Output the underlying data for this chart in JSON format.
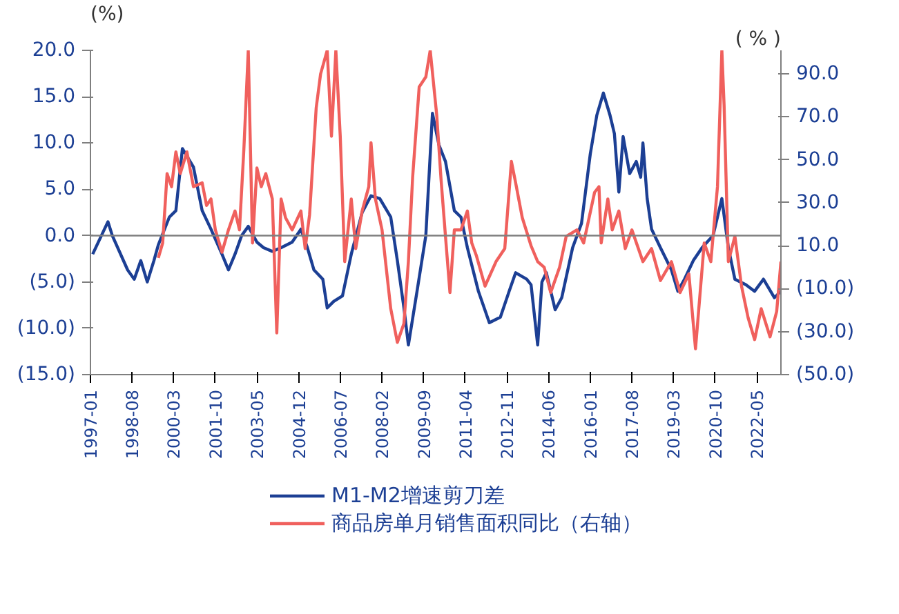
{
  "chart_data": {
    "type": "line",
    "ylabel": "(%)",
    "y2label": "( % )",
    "xlim": [
      "1997-01",
      "2023-04"
    ],
    "xticks": [
      "1997-01",
      "1998-08",
      "2000-03",
      "2001-10",
      "2003-05",
      "2004-12",
      "2006-07",
      "2008-02",
      "2009-09",
      "2011-04",
      "2012-11",
      "2014-06",
      "2016-01",
      "2017-08",
      "2019-03",
      "2020-10",
      "2022-05"
    ],
    "ylim": [
      -15,
      20
    ],
    "yticks": [
      {
        "value": 20,
        "label": "20.0"
      },
      {
        "value": 15,
        "label": "15.0"
      },
      {
        "value": 10,
        "label": "10.0"
      },
      {
        "value": 5,
        "label": "5.0"
      },
      {
        "value": 0,
        "label": "0.0"
      },
      {
        "value": -5,
        "label": "(5.0)"
      },
      {
        "value": -10,
        "label": "(10.0)"
      },
      {
        "value": -15,
        "label": "(15.0)"
      }
    ],
    "y2lim": [
      -50,
      101
    ],
    "y2ticks": [
      {
        "value": 90,
        "label": "90.0"
      },
      {
        "value": 70,
        "label": "70.0"
      },
      {
        "value": 50,
        "label": "50.0"
      },
      {
        "value": 30,
        "label": "30.0"
      },
      {
        "value": 10,
        "label": "10.0"
      },
      {
        "value": -10,
        "label": "(10.0)"
      },
      {
        "value": -30,
        "label": "(30.0)"
      },
      {
        "value": -50,
        "label": "(50.0)"
      }
    ],
    "ref_lines": [
      {
        "axis": "y",
        "value": 0,
        "color": "#7f7f7f"
      }
    ],
    "grid": false,
    "legend": "bottom",
    "marker": "none",
    "line_style": "solid",
    "series": [
      {
        "name": "M1-M2增速剪刀差",
        "color": "#1c3f94",
        "x": [
          "1997-02",
          "1997-09",
          "1997-11",
          "1998-06",
          "1998-09",
          "1998-12",
          "1999-03",
          "1999-06",
          "1999-08",
          "2000-01",
          "2000-04",
          "2000-07",
          "2000-12",
          "2001-04",
          "2001-08",
          "2002-01",
          "2002-04",
          "2002-07",
          "2002-10",
          "2003-01",
          "2003-05",
          "2003-08",
          "2003-12",
          "2004-04",
          "2004-09",
          "2005-01",
          "2005-04",
          "2005-07",
          "2005-11",
          "2006-01",
          "2006-04",
          "2006-08",
          "2006-12",
          "2007-05",
          "2007-09",
          "2008-01",
          "2008-06",
          "2008-09",
          "2008-12",
          "2009-02",
          "2009-06",
          "2009-10",
          "2010-01",
          "2010-04",
          "2010-07",
          "2010-11",
          "2011-02",
          "2011-05",
          "2011-10",
          "2012-03",
          "2012-08",
          "2012-12",
          "2013-03",
          "2013-08",
          "2013-10",
          "2014-01",
          "2014-03",
          "2014-05",
          "2014-09",
          "2014-12",
          "2015-05",
          "2015-09",
          "2016-01",
          "2016-04",
          "2016-07",
          "2016-10",
          "2016-12",
          "2017-02",
          "2017-04",
          "2017-07",
          "2017-10",
          "2017-12",
          "2018-01",
          "2018-03",
          "2018-05",
          "2018-09",
          "2019-02",
          "2019-05",
          "2019-08",
          "2019-12",
          "2020-04",
          "2020-09",
          "2021-01",
          "2021-04",
          "2021-07",
          "2021-12",
          "2022-04",
          "2022-08",
          "2023-01",
          "2023-04"
        ],
        "values": [
          -2.0,
          1.5,
          0,
          -3.7,
          -4.7,
          -2.7,
          -5.0,
          -2.7,
          -1.0,
          2.0,
          2.7,
          9.4,
          7.4,
          2.7,
          0.7,
          -2.0,
          -3.7,
          -2.0,
          0,
          1.0,
          -0.7,
          -1.3,
          -1.7,
          -1.3,
          -0.7,
          0.7,
          -1.3,
          -3.7,
          -4.7,
          -7.8,
          -7.1,
          -6.5,
          -2.0,
          2.5,
          4.3,
          4.0,
          2.0,
          -2.7,
          -7.8,
          -11.8,
          -6.0,
          0,
          13.2,
          9.8,
          8.0,
          2.7,
          2.0,
          -1.3,
          -6.0,
          -9.4,
          -8.8,
          -6.0,
          -4.0,
          -4.7,
          -5.3,
          -11.8,
          -5.0,
          -4.0,
          -8.0,
          -6.7,
          -1.3,
          1.3,
          8.8,
          13.0,
          15.4,
          13.0,
          11.0,
          4.7,
          10.7,
          6.7,
          8.0,
          6.3,
          10.0,
          4.0,
          0.7,
          -1.3,
          -3.7,
          -6.0,
          -4.7,
          -2.7,
          -1.3,
          0,
          4.0,
          -1.3,
          -4.7,
          -5.3,
          -6.0,
          -4.7,
          -6.7,
          -6.0
        ]
      },
      {
        "name": "商品房单月销售面积同比（右轴）",
        "color": "#f0605d",
        "axis": "y2",
        "x": [
          "1999-08",
          "1999-10",
          "1999-12",
          "2000-02",
          "2000-04",
          "2000-06",
          "2000-09",
          "2000-12",
          "2001-04",
          "2001-06",
          "2001-08",
          "2001-10",
          "2002-01",
          "2002-04",
          "2002-07",
          "2002-09",
          "2002-11",
          "2003-01",
          "2003-03",
          "2003-05",
          "2003-07",
          "2003-09",
          "2003-12",
          "2004-02",
          "2004-04",
          "2004-06",
          "2004-09",
          "2005-01",
          "2005-03",
          "2005-05",
          "2005-08",
          "2005-10",
          "2006-01",
          "2006-03",
          "2006-05",
          "2006-07",
          "2006-09",
          "2006-12",
          "2007-02",
          "2007-05",
          "2007-08",
          "2007-09",
          "2007-11",
          "2008-02",
          "2008-06",
          "2008-09",
          "2008-12",
          "2009-02",
          "2009-04",
          "2009-07",
          "2009-10",
          "2009-12",
          "2010-03",
          "2010-05",
          "2010-07",
          "2010-09",
          "2010-11",
          "2011-02",
          "2011-05",
          "2011-07",
          "2011-09",
          "2012-01",
          "2012-06",
          "2012-10",
          "2013-01",
          "2013-03",
          "2013-06",
          "2013-10",
          "2014-01",
          "2014-04",
          "2014-07",
          "2014-11",
          "2015-02",
          "2015-07",
          "2015-10",
          "2016-03",
          "2016-05",
          "2016-06",
          "2016-09",
          "2016-11",
          "2017-02",
          "2017-05",
          "2017-08",
          "2018-01",
          "2018-05",
          "2018-09",
          "2019-02",
          "2019-06",
          "2019-10",
          "2020-01",
          "2020-05",
          "2020-08",
          "2020-11",
          "2021-01",
          "2021-02",
          "2021-04",
          "2021-07",
          "2021-10",
          "2022-01",
          "2022-04",
          "2022-07",
          "2022-11",
          "2023-02",
          "2023-04"
        ],
        "values": [
          4.3,
          11.3,
          43.6,
          37.5,
          53.7,
          43.6,
          53.7,
          37.5,
          39.3,
          28.8,
          31.8,
          17.4,
          7.0,
          17.4,
          26.2,
          17.4,
          55.0,
          101,
          11.3,
          46.2,
          37.5,
          43.6,
          31.8,
          -30.6,
          31.8,
          23.1,
          17.4,
          26.2,
          8.7,
          24.4,
          74.2,
          90.0,
          101,
          61.0,
          101,
          61.0,
          2.6,
          31.8,
          8.7,
          26.2,
          37.5,
          58.0,
          31.8,
          17.4,
          -19.3,
          -35.0,
          -26.2,
          2.6,
          41.9,
          84.0,
          88.6,
          101,
          71.0,
          40.6,
          14.4,
          -11.8,
          17.4,
          17.4,
          26.2,
          11.3,
          5.6,
          -8.8,
          2.6,
          8.7,
          49.3,
          39.3,
          23.1,
          10.0,
          2.6,
          0,
          -11.8,
          0,
          14.4,
          17.4,
          11.3,
          34.9,
          37.5,
          11.3,
          31.8,
          17.4,
          26.2,
          8.7,
          17.4,
          2.6,
          8.7,
          -6.2,
          2.6,
          -11.8,
          -3.1,
          -38.0,
          11.3,
          2.6,
          37.5,
          101,
          75.5,
          2.6,
          14.4,
          -8.8,
          -23.6,
          -33.7,
          -19.3,
          -32.4,
          -20.6,
          2.6
        ]
      }
    ]
  }
}
